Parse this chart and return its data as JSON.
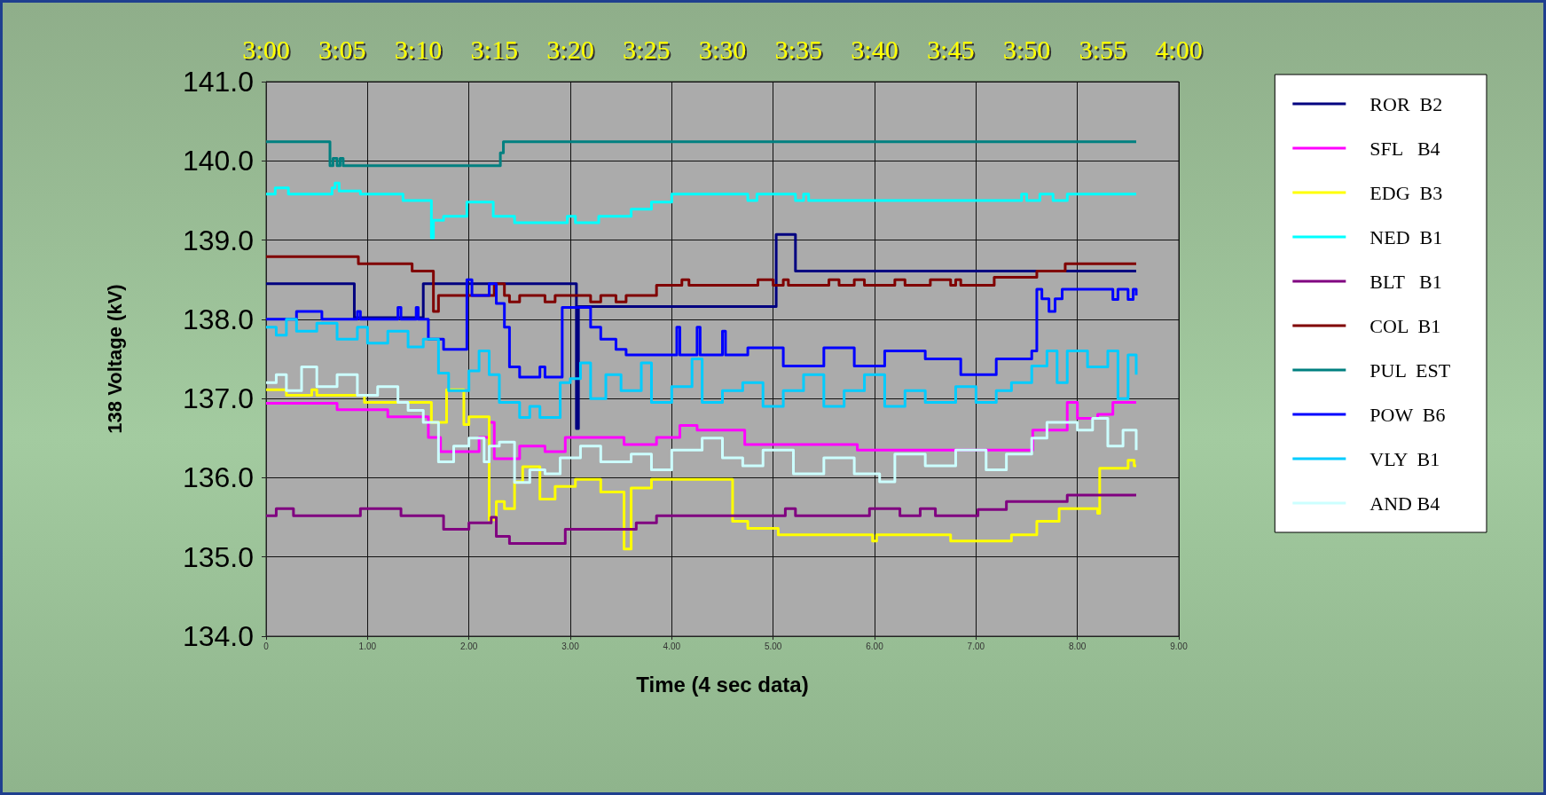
{
  "chart_data": {
    "type": "step",
    "xlabel": "Time (4 sec data)",
    "ylabel": "138 Voltage (kV)",
    "xlim": [
      0,
      9
    ],
    "xticks": [
      0,
      {
        "value": 1,
        "label": "1.00"
      },
      {
        "value": 2,
        "label": "2.00"
      },
      {
        "value": 3,
        "label": "3.00"
      },
      {
        "value": 4,
        "label": "4.00"
      },
      {
        "value": 5,
        "label": "5.00"
      },
      {
        "value": 6,
        "label": "6.00"
      },
      {
        "value": 7,
        "label": "7.00"
      },
      {
        "value": 8,
        "label": "8.00"
      },
      {
        "value": 9,
        "label": "9.00"
      }
    ],
    "x2lim": [
      3,
      4
    ],
    "x2ticks": [
      {
        "value": 3,
        "label": "3:00"
      },
      {
        "value": 3.0833,
        "label": "3:05"
      },
      {
        "value": 3.1667,
        "label": "3:10"
      },
      {
        "value": 3.25,
        "label": "3:15"
      },
      {
        "value": 3.3333,
        "label": "3:20"
      },
      {
        "value": 3.4167,
        "label": "3:25"
      },
      {
        "value": 3.5,
        "label": "3:30"
      },
      {
        "value": 3.5833,
        "label": "3:35"
      },
      {
        "value": 3.6667,
        "label": "3:40"
      },
      {
        "value": 3.75,
        "label": "3:45"
      },
      {
        "value": 3.8333,
        "label": "3:50"
      },
      {
        "value": 3.9167,
        "label": "3:55"
      },
      {
        "value": 4,
        "label": "4:00"
      }
    ],
    "ylim": [
      134,
      141
    ],
    "yticks": [
      {
        "value": 134,
        "label": "134.0"
      },
      {
        "value": 135,
        "label": "135.0"
      },
      {
        "value": 136,
        "label": "136.0"
      },
      {
        "value": 137,
        "label": "137.0"
      },
      {
        "value": 138,
        "label": "138.0"
      },
      {
        "value": 139,
        "label": "139.0"
      },
      {
        "value": 140,
        "label": "140.0"
      },
      {
        "value": 141,
        "label": "141.0"
      }
    ],
    "grid": true,
    "legend": "right",
    "series": [
      {
        "name": "ROR  B2",
        "color": "#000080",
        "x": [
          0,
          0.87,
          1.55,
          3.06,
          3.08,
          5.03,
          5.22,
          8.58
        ],
        "values": [
          138.45,
          138.02,
          138.45,
          136.62,
          138.16,
          139.07,
          138.61,
          138.61
        ]
      },
      {
        "name": "SFL   B4",
        "color": "#ff00ff",
        "x": [
          0,
          0.7,
          1.2,
          1.6,
          1.72,
          2.1,
          2.2,
          2.25,
          2.5,
          2.75,
          2.95,
          3.53,
          3.85,
          4.08,
          4.25,
          4.72,
          5.83,
          7.56,
          7.9,
          8.0,
          8.2,
          8.35,
          8.58
        ],
        "values": [
          136.94,
          136.86,
          136.77,
          136.51,
          136.33,
          136.51,
          136.7,
          136.24,
          136.4,
          136.33,
          136.51,
          136.42,
          136.51,
          136.66,
          136.6,
          136.42,
          136.35,
          136.6,
          136.95,
          136.75,
          136.8,
          136.95,
          136.95
        ]
      },
      {
        "name": "EDG  B3",
        "color": "#ffff00",
        "x": [
          0,
          0.2,
          0.45,
          0.5,
          0.97,
          1.63,
          1.78,
          1.95,
          2.0,
          2.2,
          2.27,
          2.35,
          2.45,
          2.53,
          2.7,
          2.85,
          3.05,
          3.3,
          3.53,
          3.6,
          3.8,
          4.6,
          4.75,
          5.05,
          5.98,
          6.02,
          6.75,
          7.35,
          7.6,
          7.82,
          8.2,
          8.22,
          8.5,
          8.56,
          8.58
        ],
        "values": [
          137.11,
          137.04,
          137.11,
          137.04,
          136.95,
          136.7,
          137.11,
          136.67,
          136.77,
          135.47,
          135.7,
          135.61,
          135.95,
          136.14,
          135.73,
          135.89,
          135.98,
          135.82,
          135.1,
          135.87,
          135.98,
          135.45,
          135.36,
          135.28,
          135.2,
          135.28,
          135.2,
          135.28,
          135.45,
          135.61,
          135.55,
          136.12,
          136.22,
          136.15,
          136.15
        ]
      },
      {
        "name": "NED  B1",
        "color": "#00ffff",
        "x": [
          0,
          0.09,
          0.22,
          0.65,
          0.68,
          0.72,
          0.93,
          1.35,
          1.63,
          1.65,
          1.75,
          1.98,
          2.24,
          2.45,
          2.97,
          3.05,
          3.28,
          3.6,
          3.8,
          4.0,
          4.75,
          4.84,
          5.22,
          5.3,
          5.35,
          7.45,
          7.5,
          7.63,
          7.76,
          7.9,
          8.58
        ],
        "values": [
          139.58,
          139.66,
          139.58,
          139.66,
          139.72,
          139.62,
          139.58,
          139.5,
          139.03,
          139.25,
          139.3,
          139.48,
          139.3,
          139.22,
          139.3,
          139.22,
          139.3,
          139.39,
          139.48,
          139.58,
          139.5,
          139.58,
          139.5,
          139.58,
          139.5,
          139.58,
          139.5,
          139.58,
          139.5,
          139.58,
          139.58
        ]
      },
      {
        "name": "BLT   B1",
        "color": "#800080",
        "x": [
          0,
          0.1,
          0.27,
          0.93,
          1.33,
          1.75,
          2.0,
          2.22,
          2.27,
          2.4,
          2.95,
          3.65,
          3.85,
          5.12,
          5.22,
          5.95,
          6.25,
          6.45,
          6.6,
          7.02,
          7.3,
          7.9,
          8.58
        ],
        "values": [
          135.52,
          135.61,
          135.52,
          135.61,
          135.52,
          135.35,
          135.43,
          135.5,
          135.26,
          135.17,
          135.35,
          135.43,
          135.52,
          135.61,
          135.52,
          135.61,
          135.52,
          135.61,
          135.52,
          135.6,
          135.7,
          135.78,
          135.78
        ]
      },
      {
        "name": "COL  B1",
        "color": "#800000",
        "x": [
          0,
          0.91,
          1.44,
          1.65,
          1.7,
          2.25,
          2.35,
          2.4,
          2.5,
          2.75,
          2.85,
          3.2,
          3.3,
          3.45,
          3.55,
          3.85,
          4.1,
          4.17,
          4.85,
          5.0,
          5.1,
          5.15,
          5.55,
          5.65,
          5.8,
          5.9,
          6.2,
          6.3,
          6.55,
          6.75,
          6.8,
          6.85,
          7.18,
          7.6,
          7.88,
          8.58
        ],
        "values": [
          138.79,
          138.7,
          138.61,
          138.1,
          138.3,
          138.45,
          138.3,
          138.22,
          138.3,
          138.22,
          138.3,
          138.22,
          138.3,
          138.22,
          138.3,
          138.43,
          138.5,
          138.43,
          138.5,
          138.43,
          138.5,
          138.43,
          138.5,
          138.43,
          138.5,
          138.43,
          138.5,
          138.43,
          138.5,
          138.43,
          138.5,
          138.43,
          138.53,
          138.61,
          138.7,
          138.7
        ]
      },
      {
        "name": "PUL  EST",
        "color": "#008080",
        "x": [
          0,
          0.63,
          0.66,
          0.7,
          0.73,
          0.76,
          2.31,
          2.34,
          8.58
        ],
        "values": [
          140.24,
          139.94,
          140.03,
          139.94,
          140.03,
          139.94,
          140.1,
          140.24,
          140.24
        ]
      },
      {
        "name": "POW  B6",
        "color": "#0000ff",
        "x": [
          0,
          0.3,
          0.55,
          0.9,
          0.93,
          1.3,
          1.33,
          1.48,
          1.5,
          1.6,
          1.75,
          1.98,
          2.03,
          2.2,
          2.27,
          2.35,
          2.4,
          2.5,
          2.7,
          2.75,
          2.92,
          3.2,
          3.3,
          3.45,
          3.55,
          4.05,
          4.08,
          4.25,
          4.28,
          4.5,
          4.53,
          4.75,
          5.1,
          5.5,
          5.8,
          6.1,
          6.5,
          6.85,
          7.2,
          7.55,
          7.6,
          7.65,
          7.72,
          7.78,
          7.85,
          8.35,
          8.4,
          8.5,
          8.55,
          8.58
        ],
        "values": [
          138.0,
          138.1,
          138.0,
          138.1,
          138.0,
          138.15,
          138.0,
          138.15,
          138.0,
          137.75,
          137.62,
          138.5,
          138.3,
          138.45,
          138.2,
          137.9,
          137.4,
          137.27,
          137.4,
          137.27,
          138.15,
          137.9,
          137.75,
          137.62,
          137.55,
          137.9,
          137.55,
          137.9,
          137.55,
          137.85,
          137.55,
          137.64,
          137.41,
          137.64,
          137.41,
          137.6,
          137.5,
          137.3,
          137.5,
          137.6,
          138.38,
          138.26,
          138.1,
          138.26,
          138.38,
          138.25,
          138.38,
          138.25,
          138.38,
          138.3
        ]
      },
      {
        "name": "VLY  B1",
        "color": "#00ccff",
        "x": [
          0,
          0.1,
          0.2,
          0.3,
          0.5,
          0.7,
          0.9,
          1.0,
          1.2,
          1.4,
          1.55,
          1.7,
          1.8,
          2.0,
          2.1,
          2.2,
          2.3,
          2.5,
          2.6,
          2.7,
          2.9,
          3.0,
          3.1,
          3.2,
          3.35,
          3.5,
          3.7,
          3.8,
          4.0,
          4.2,
          4.3,
          4.5,
          4.7,
          4.9,
          5.1,
          5.3,
          5.5,
          5.7,
          5.9,
          6.1,
          6.3,
          6.5,
          6.8,
          7.0,
          7.2,
          7.35,
          7.55,
          7.7,
          7.8,
          7.9,
          8.1,
          8.3,
          8.4,
          8.5,
          8.58
        ],
        "values": [
          137.9,
          137.8,
          138.0,
          137.85,
          137.95,
          137.75,
          137.9,
          137.7,
          137.85,
          137.65,
          137.75,
          137.32,
          137.1,
          137.35,
          137.6,
          137.3,
          136.95,
          136.76,
          136.9,
          136.76,
          137.2,
          137.25,
          137.45,
          137.0,
          137.3,
          137.1,
          137.45,
          136.95,
          137.15,
          137.5,
          136.95,
          137.1,
          137.2,
          136.9,
          137.1,
          137.3,
          136.9,
          137.1,
          137.3,
          136.9,
          137.1,
          136.95,
          137.15,
          136.95,
          137.1,
          137.2,
          137.41,
          137.6,
          137.2,
          137.6,
          137.4,
          137.6,
          137.0,
          137.55,
          137.3
        ]
      },
      {
        "name": "AND B4",
        "color": "#ccffff",
        "x": [
          0,
          0.1,
          0.2,
          0.35,
          0.5,
          0.7,
          0.9,
          1.1,
          1.3,
          1.4,
          1.55,
          1.7,
          1.85,
          2.0,
          2.15,
          2.2,
          2.3,
          2.45,
          2.6,
          2.75,
          2.9,
          3.1,
          3.3,
          3.6,
          3.8,
          4.0,
          4.3,
          4.5,
          4.7,
          4.9,
          5.2,
          5.5,
          5.8,
          6.05,
          6.2,
          6.5,
          6.8,
          7.1,
          7.3,
          7.55,
          7.7,
          8.0,
          8.15,
          8.3,
          8.45,
          8.58
        ],
        "values": [
          137.2,
          137.3,
          137.1,
          137.4,
          137.15,
          137.3,
          137.04,
          137.15,
          136.95,
          136.85,
          136.7,
          136.2,
          136.4,
          136.5,
          136.2,
          136.4,
          136.45,
          135.94,
          136.1,
          136.05,
          136.25,
          136.4,
          136.2,
          136.3,
          136.1,
          136.35,
          136.5,
          136.25,
          136.15,
          136.35,
          136.05,
          136.25,
          136.05,
          135.95,
          136.3,
          136.15,
          136.35,
          136.1,
          136.3,
          136.5,
          136.7,
          136.6,
          136.75,
          136.4,
          136.6,
          136.35
        ]
      }
    ]
  }
}
